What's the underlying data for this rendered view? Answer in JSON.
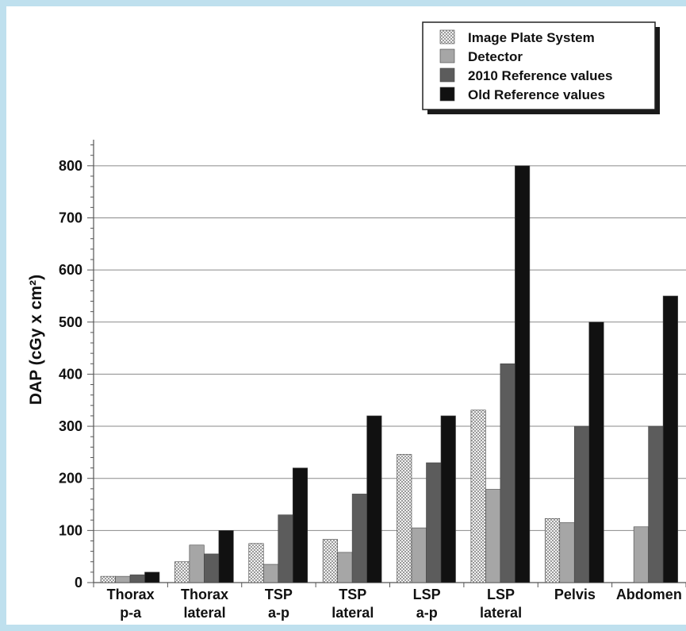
{
  "chart_data": {
    "type": "bar",
    "title": "",
    "xlabel": "",
    "ylabel": "DAP (cGy x cm²)",
    "ylim": [
      0,
      850
    ],
    "yticks": [
      0,
      100,
      200,
      300,
      400,
      500,
      600,
      700,
      800
    ],
    "grid": true,
    "legend_position": "top-right",
    "categories": [
      [
        "Thorax",
        "p-a"
      ],
      [
        "Thorax",
        "lateral"
      ],
      [
        "TSP",
        "a-p"
      ],
      [
        "TSP",
        "lateral"
      ],
      [
        "LSP",
        "a-p"
      ],
      [
        "LSP",
        "lateral"
      ],
      [
        "Pelvis"
      ],
      [
        "Abdomen"
      ]
    ],
    "series": [
      {
        "name": "Image Plate System",
        "fill": "pattern",
        "color": "#c8c8c8",
        "values": [
          12,
          40,
          75,
          83,
          246,
          331,
          123,
          null
        ]
      },
      {
        "name": "Detector",
        "fill": "solid",
        "color": "#a6a6a6",
        "values": [
          12,
          72,
          35,
          58,
          105,
          179,
          115,
          107
        ]
      },
      {
        "name": "2010 Reference values",
        "fill": "solid",
        "color": "#5c5c5c",
        "values": [
          15,
          55,
          130,
          170,
          230,
          420,
          300,
          300
        ]
      },
      {
        "name": "Old Reference values",
        "fill": "solid",
        "color": "#111111",
        "values": [
          20,
          100,
          220,
          320,
          320,
          800,
          500,
          550
        ]
      }
    ]
  }
}
